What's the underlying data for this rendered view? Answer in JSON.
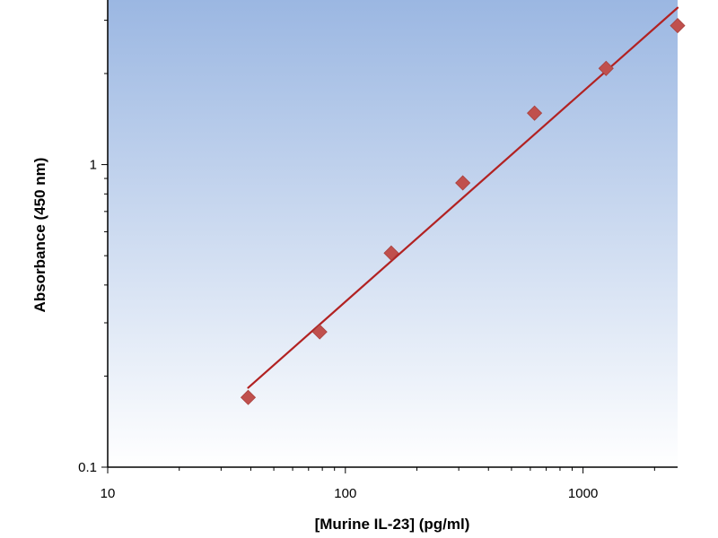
{
  "chart_data": {
    "type": "scatter",
    "title": "",
    "xlabel": "[Murine IL-23] (pg/ml)",
    "ylabel": "Absorbance (450 nm)",
    "x_scale": "log",
    "y_scale": "log",
    "xlim": [
      10,
      2500
    ],
    "ylim": [
      0.1,
      3.5
    ],
    "x_tick_labels": [
      "10",
      "100",
      "1000"
    ],
    "x_tick_values": [
      10,
      100,
      1000
    ],
    "y_tick_labels": [
      "0.1",
      "1"
    ],
    "y_tick_values": [
      0.1,
      1
    ],
    "grid": false,
    "legend": "none",
    "series": [
      {
        "points": [
          {
            "x": 39,
            "y": 0.17
          },
          {
            "x": 78,
            "y": 0.28
          },
          {
            "x": 156,
            "y": 0.51
          },
          {
            "x": 312,
            "y": 0.87
          },
          {
            "x": 625,
            "y": 1.48
          },
          {
            "x": 1250,
            "y": 2.08
          },
          {
            "x": 2500,
            "y": 2.88
          }
        ],
        "marker": "diamond",
        "marker_color": "#c0504d"
      }
    ],
    "fit_line": {
      "points": [
        {
          "x": 39,
          "y": 0.183
        },
        {
          "x": 2500,
          "y": 3.3
        }
      ],
      "color": "#b22222"
    },
    "plot_background": {
      "top": "#9bb7e2",
      "bottom": "#ffffff"
    }
  }
}
